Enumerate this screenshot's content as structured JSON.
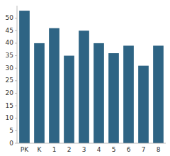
{
  "chart_data": {
    "type": "bar",
    "categories": [
      "PK",
      "K",
      "1",
      "2",
      "3",
      "4",
      "5",
      "6",
      "7",
      "8"
    ],
    "values": [
      53,
      40,
      46,
      35,
      45,
      40,
      36,
      39,
      31,
      39
    ],
    "color": "#2e6484",
    "ylim": [
      0,
      55
    ],
    "yticks": [
      0,
      5,
      10,
      15,
      20,
      25,
      30,
      35,
      40,
      45,
      50
    ],
    "grid": false
  }
}
